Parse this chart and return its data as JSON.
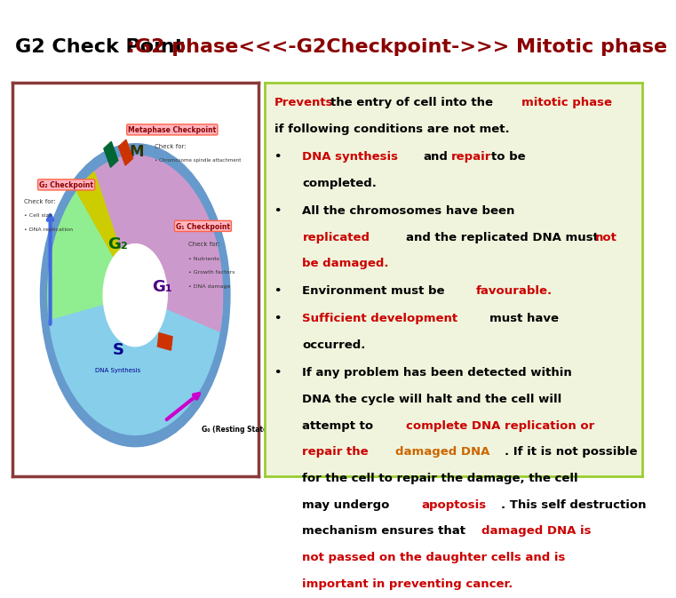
{
  "title_black": "G2 Check Point ",
  "title_red": ":G2 phase<<<-G2Checkpoint->>> Mitotic phase",
  "title_fontsize": 16,
  "top_bar_color": "#4169B0",
  "left_panel_border": "#8B3A3A",
  "right_panel_bg": "#F0F4DC",
  "right_panel_border": "#9ACD32",
  "fontsize_content": 9.5
}
